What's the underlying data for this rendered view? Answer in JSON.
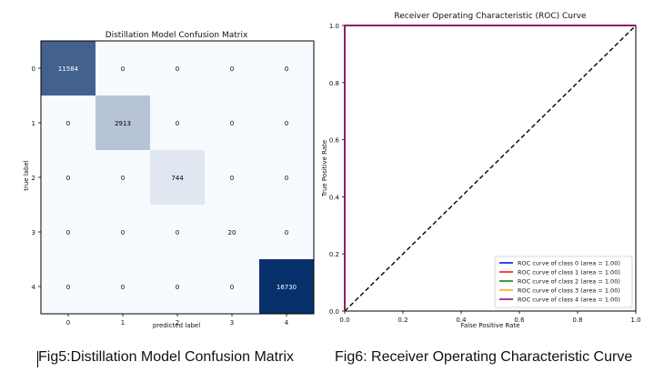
{
  "captions": {
    "fig5": "Fig5:Distillation Model Confusion Matrix",
    "fig6": "Fig6: Receiver Operating Characteristic Curve"
  },
  "chart_data": [
    {
      "type": "heatmap",
      "title": "Distillation Model Confusion Matrix",
      "xlabel": "predicted label",
      "ylabel": "true label",
      "x_categories": [
        "0",
        "1",
        "2",
        "3",
        "4"
      ],
      "y_categories": [
        "0",
        "1",
        "2",
        "3",
        "4"
      ],
      "values": [
        [
          11584,
          0,
          0,
          0,
          0
        ],
        [
          0,
          2913,
          0,
          0,
          0
        ],
        [
          0,
          0,
          744,
          0,
          0
        ],
        [
          0,
          0,
          0,
          20,
          0
        ],
        [
          0,
          0,
          0,
          0,
          16730
        ]
      ],
      "colormap": "Blues",
      "color_low": "#f7fbff",
      "color_high": "#08306b"
    },
    {
      "type": "line",
      "title": "Receiver Operating Characteristic (ROC) Curve",
      "xlabel": "False Positive Rate",
      "ylabel": "True Positive Rate",
      "xlim": [
        0.0,
        1.0
      ],
      "ylim": [
        0.0,
        1.0
      ],
      "xticks": [
        "0.0",
        "0.2",
        "0.4",
        "0.6",
        "0.8",
        "1.0"
      ],
      "yticks": [
        "0.0",
        "0.2",
        "0.4",
        "0.6",
        "0.8",
        "1.0"
      ],
      "legend_position": "lower-right",
      "series": [
        {
          "name": "ROC curve of class 0 (area = 1.00)",
          "color": "#0000ff",
          "x": [
            0,
            0,
            1
          ],
          "y": [
            0,
            1,
            1
          ]
        },
        {
          "name": "ROC curve of class 1 (area = 1.00)",
          "color": "#ff0000",
          "x": [
            0,
            0,
            1
          ],
          "y": [
            0,
            1,
            1
          ]
        },
        {
          "name": "ROC curve of class 2 (area = 1.00)",
          "color": "#008000",
          "x": [
            0,
            0,
            1
          ],
          "y": [
            0,
            1,
            1
          ]
        },
        {
          "name": "ROC curve of class 3 (area = 1.00)",
          "color": "#ffa500",
          "x": [
            0,
            0,
            1
          ],
          "y": [
            0,
            1,
            1
          ]
        },
        {
          "name": "ROC curve of class 4 (area = 1.00)",
          "color": "#800080",
          "x": [
            0,
            0,
            1
          ],
          "y": [
            0,
            1,
            1
          ]
        }
      ],
      "reference_line": {
        "x": [
          0,
          1
        ],
        "y": [
          0,
          1
        ],
        "style": "dashed",
        "color": "#000000"
      }
    }
  ]
}
